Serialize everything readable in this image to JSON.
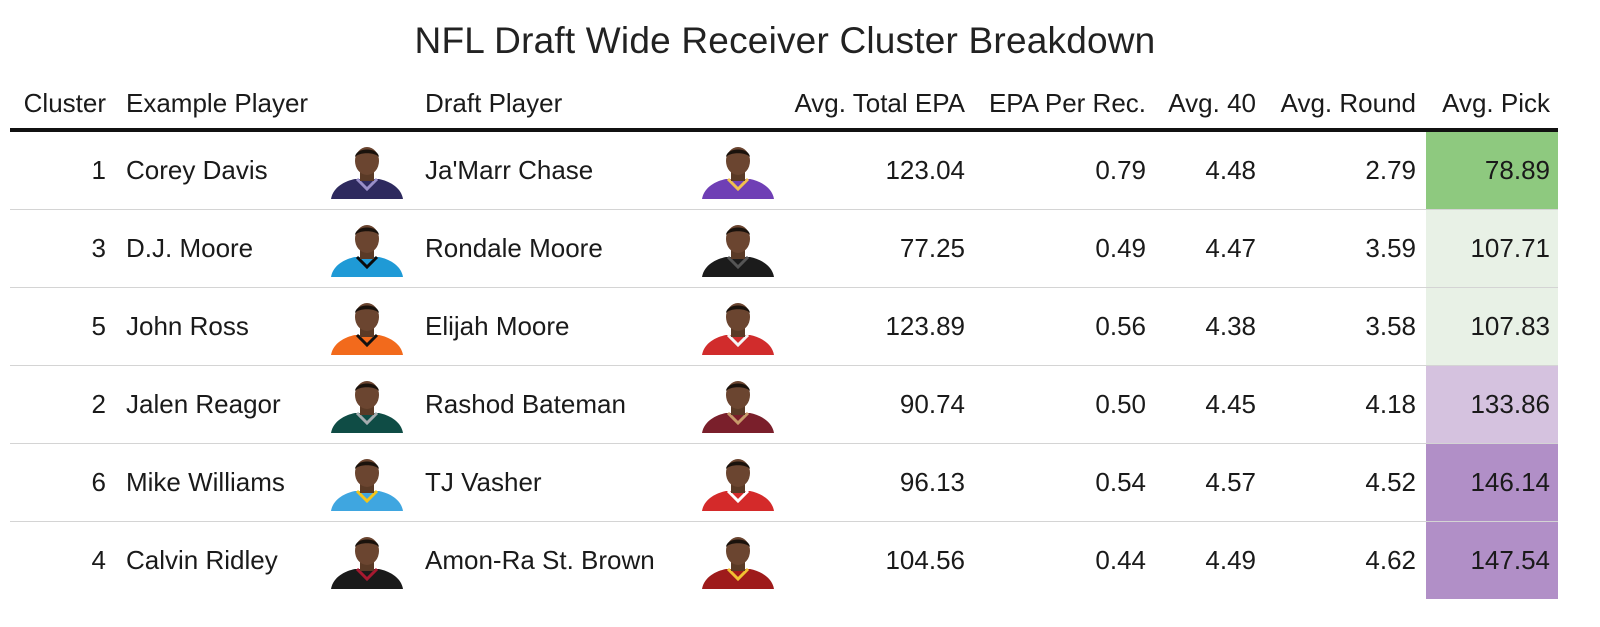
{
  "title": "NFL Draft Wide Receiver Cluster Breakdown",
  "columns": {
    "cluster": "Cluster",
    "example_player": "Example Player",
    "draft_player": "Draft Player",
    "avg_total_epa": "Avg. Total EPA",
    "epa_per_rec": "EPA Per Rec.",
    "avg_40": "Avg. 40",
    "avg_round": "Avg. Round",
    "avg_pick": "Avg. Pick"
  },
  "rows": [
    {
      "cluster": "1",
      "example": "Corey Davis",
      "draft": "Ja'Marr Chase",
      "epa": "123.04",
      "epr": "0.79",
      "forty": "4.48",
      "round": "2.79",
      "pick": "78.89",
      "pick_color": "#8ec97f",
      "ex_jersey": "#2e2a5e",
      "ex_accent": "#9a8fc8",
      "dr_jersey": "#6f3fb5",
      "dr_accent": "#f2c14e"
    },
    {
      "cluster": "3",
      "example": "D.J. Moore",
      "draft": "Rondale Moore",
      "epa": "77.25",
      "epr": "0.49",
      "forty": "4.47",
      "round": "3.59",
      "pick": "107.71",
      "pick_color": "#e8f1e6",
      "ex_jersey": "#1f9ad6",
      "ex_accent": "#0b0b0b",
      "dr_jersey": "#1b1b1b",
      "dr_accent": "#555555"
    },
    {
      "cluster": "5",
      "example": "John Ross",
      "draft": "Elijah Moore",
      "epa": "123.89",
      "epr": "0.56",
      "forty": "4.38",
      "round": "3.58",
      "pick": "107.83",
      "pick_color": "#e8f1e6",
      "ex_jersey": "#f26a1c",
      "ex_accent": "#111111",
      "dr_jersey": "#d12c2c",
      "dr_accent": "#f5f5f5"
    },
    {
      "cluster": "2",
      "example": "Jalen Reagor",
      "draft": "Rashod Bateman",
      "epa": "90.74",
      "epr": "0.50",
      "forty": "4.45",
      "round": "4.18",
      "pick": "133.86",
      "pick_color": "#d5c2df",
      "ex_jersey": "#0f4c45",
      "ex_accent": "#a5acaf",
      "dr_jersey": "#7a1f2b",
      "dr_accent": "#c89a6a"
    },
    {
      "cluster": "6",
      "example": "Mike Williams",
      "draft": "TJ Vasher",
      "epa": "96.13",
      "epr": "0.54",
      "forty": "4.57",
      "round": "4.52",
      "pick": "146.14",
      "pick_color": "#b18fc7",
      "ex_jersey": "#3fa6e0",
      "ex_accent": "#f5c518",
      "dr_jersey": "#d42a2a",
      "dr_accent": "#ffffff"
    },
    {
      "cluster": "4",
      "example": "Calvin Ridley",
      "draft": "Amon-Ra St. Brown",
      "epa": "104.56",
      "epr": "0.44",
      "forty": "4.49",
      "round": "4.62",
      "pick": "147.54",
      "pick_color": "#b18fc7",
      "ex_jersey": "#1a1a1a",
      "ex_accent": "#a71930",
      "dr_jersey": "#9e1b1b",
      "dr_accent": "#f1c232"
    }
  ],
  "chart_data": {
    "type": "table",
    "title": "NFL Draft Wide Receiver Cluster Breakdown",
    "columns": [
      "Cluster",
      "Example Player",
      "Draft Player",
      "Avg. Total EPA",
      "EPA Per Rec.",
      "Avg. 40",
      "Avg. Round",
      "Avg. Pick"
    ],
    "rows": [
      [
        1,
        "Corey Davis",
        "Ja'Marr Chase",
        123.04,
        0.79,
        4.48,
        2.79,
        78.89
      ],
      [
        3,
        "D.J. Moore",
        "Rondale Moore",
        77.25,
        0.49,
        4.47,
        3.59,
        107.71
      ],
      [
        5,
        "John Ross",
        "Elijah Moore",
        123.89,
        0.56,
        4.38,
        3.58,
        107.83
      ],
      [
        2,
        "Jalen Reagor",
        "Rashod Bateman",
        90.74,
        0.5,
        4.45,
        4.18,
        133.86
      ],
      [
        6,
        "Mike Williams",
        "TJ Vasher",
        96.13,
        0.54,
        4.57,
        4.52,
        146.14
      ],
      [
        4,
        "Calvin Ridley",
        "Amon-Ra St. Brown",
        104.56,
        0.44,
        4.49,
        4.62,
        147.54
      ]
    ]
  }
}
